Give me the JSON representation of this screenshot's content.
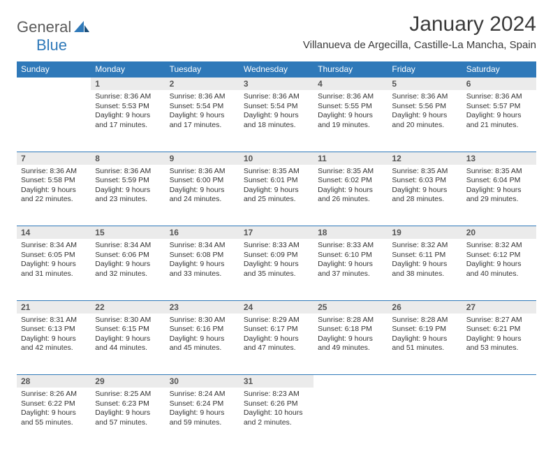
{
  "brand": {
    "part1": "General",
    "part2": "Blue"
  },
  "title": "January 2024",
  "location": "Villanueva de Argecilla, Castille-La Mancha, Spain",
  "colors": {
    "header_bg": "#2f79b9",
    "header_fg": "#ffffff",
    "daynum_bg": "#ebebeb",
    "rule": "#2f79b9",
    "text": "#333333",
    "logo_gray": "#5a5a5a",
    "logo_blue": "#2f79b9"
  },
  "weekdays": [
    "Sunday",
    "Monday",
    "Tuesday",
    "Wednesday",
    "Thursday",
    "Friday",
    "Saturday"
  ],
  "weeks": [
    [
      null,
      {
        "n": "1",
        "sr": "8:36 AM",
        "ss": "5:53 PM",
        "dl": "9 hours and 17 minutes."
      },
      {
        "n": "2",
        "sr": "8:36 AM",
        "ss": "5:54 PM",
        "dl": "9 hours and 17 minutes."
      },
      {
        "n": "3",
        "sr": "8:36 AM",
        "ss": "5:54 PM",
        "dl": "9 hours and 18 minutes."
      },
      {
        "n": "4",
        "sr": "8:36 AM",
        "ss": "5:55 PM",
        "dl": "9 hours and 19 minutes."
      },
      {
        "n": "5",
        "sr": "8:36 AM",
        "ss": "5:56 PM",
        "dl": "9 hours and 20 minutes."
      },
      {
        "n": "6",
        "sr": "8:36 AM",
        "ss": "5:57 PM",
        "dl": "9 hours and 21 minutes."
      }
    ],
    [
      {
        "n": "7",
        "sr": "8:36 AM",
        "ss": "5:58 PM",
        "dl": "9 hours and 22 minutes."
      },
      {
        "n": "8",
        "sr": "8:36 AM",
        "ss": "5:59 PM",
        "dl": "9 hours and 23 minutes."
      },
      {
        "n": "9",
        "sr": "8:36 AM",
        "ss": "6:00 PM",
        "dl": "9 hours and 24 minutes."
      },
      {
        "n": "10",
        "sr": "8:35 AM",
        "ss": "6:01 PM",
        "dl": "9 hours and 25 minutes."
      },
      {
        "n": "11",
        "sr": "8:35 AM",
        "ss": "6:02 PM",
        "dl": "9 hours and 26 minutes."
      },
      {
        "n": "12",
        "sr": "8:35 AM",
        "ss": "6:03 PM",
        "dl": "9 hours and 28 minutes."
      },
      {
        "n": "13",
        "sr": "8:35 AM",
        "ss": "6:04 PM",
        "dl": "9 hours and 29 minutes."
      }
    ],
    [
      {
        "n": "14",
        "sr": "8:34 AM",
        "ss": "6:05 PM",
        "dl": "9 hours and 31 minutes."
      },
      {
        "n": "15",
        "sr": "8:34 AM",
        "ss": "6:06 PM",
        "dl": "9 hours and 32 minutes."
      },
      {
        "n": "16",
        "sr": "8:34 AM",
        "ss": "6:08 PM",
        "dl": "9 hours and 33 minutes."
      },
      {
        "n": "17",
        "sr": "8:33 AM",
        "ss": "6:09 PM",
        "dl": "9 hours and 35 minutes."
      },
      {
        "n": "18",
        "sr": "8:33 AM",
        "ss": "6:10 PM",
        "dl": "9 hours and 37 minutes."
      },
      {
        "n": "19",
        "sr": "8:32 AM",
        "ss": "6:11 PM",
        "dl": "9 hours and 38 minutes."
      },
      {
        "n": "20",
        "sr": "8:32 AM",
        "ss": "6:12 PM",
        "dl": "9 hours and 40 minutes."
      }
    ],
    [
      {
        "n": "21",
        "sr": "8:31 AM",
        "ss": "6:13 PM",
        "dl": "9 hours and 42 minutes."
      },
      {
        "n": "22",
        "sr": "8:30 AM",
        "ss": "6:15 PM",
        "dl": "9 hours and 44 minutes."
      },
      {
        "n": "23",
        "sr": "8:30 AM",
        "ss": "6:16 PM",
        "dl": "9 hours and 45 minutes."
      },
      {
        "n": "24",
        "sr": "8:29 AM",
        "ss": "6:17 PM",
        "dl": "9 hours and 47 minutes."
      },
      {
        "n": "25",
        "sr": "8:28 AM",
        "ss": "6:18 PM",
        "dl": "9 hours and 49 minutes."
      },
      {
        "n": "26",
        "sr": "8:28 AM",
        "ss": "6:19 PM",
        "dl": "9 hours and 51 minutes."
      },
      {
        "n": "27",
        "sr": "8:27 AM",
        "ss": "6:21 PM",
        "dl": "9 hours and 53 minutes."
      }
    ],
    [
      {
        "n": "28",
        "sr": "8:26 AM",
        "ss": "6:22 PM",
        "dl": "9 hours and 55 minutes."
      },
      {
        "n": "29",
        "sr": "8:25 AM",
        "ss": "6:23 PM",
        "dl": "9 hours and 57 minutes."
      },
      {
        "n": "30",
        "sr": "8:24 AM",
        "ss": "6:24 PM",
        "dl": "9 hours and 59 minutes."
      },
      {
        "n": "31",
        "sr": "8:23 AM",
        "ss": "6:26 PM",
        "dl": "10 hours and 2 minutes."
      },
      null,
      null,
      null
    ]
  ],
  "labels": {
    "sunrise": "Sunrise:",
    "sunset": "Sunset:",
    "daylight": "Daylight:"
  }
}
